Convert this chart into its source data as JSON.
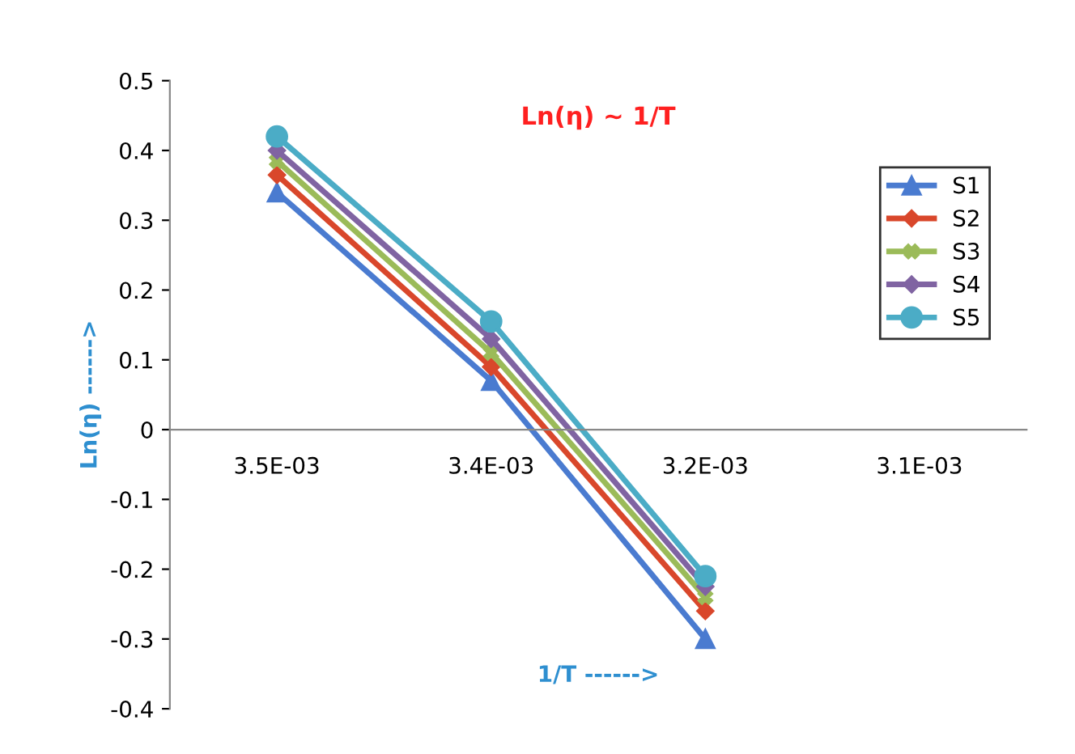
{
  "chart_data": {
    "type": "line",
    "title": "Ln(η) ~ 1/T",
    "xlabel": "1/T ------>",
    "ylabel": "Ln(η) ------>",
    "categories": [
      "3.5E-03",
      "3.4E-03",
      "3.2E-03",
      "3.1E-03"
    ],
    "series": [
      {
        "name": "S1",
        "color": "#4a7bd0",
        "marker": "triangle",
        "values": [
          0.34,
          0.07,
          -0.3,
          null
        ]
      },
      {
        "name": "S2",
        "color": "#d9472b",
        "marker": "diamond",
        "values": [
          0.365,
          0.09,
          -0.26,
          null
        ]
      },
      {
        "name": "S3",
        "color": "#9bbb59",
        "marker": "cross",
        "values": [
          0.385,
          0.11,
          -0.24,
          null
        ]
      },
      {
        "name": "S4",
        "color": "#8064a2",
        "marker": "diamond",
        "values": [
          0.4,
          0.13,
          -0.225,
          null
        ]
      },
      {
        "name": "S5",
        "color": "#4bacc6",
        "marker": "circle",
        "values": [
          0.42,
          0.155,
          -0.21,
          null
        ]
      }
    ],
    "ylim": [
      -0.4,
      0.5
    ],
    "yticks": [
      -0.4,
      -0.3,
      -0.2,
      -0.1,
      0,
      0.1,
      0.2,
      0.3,
      0.4,
      0.5
    ],
    "grid": false,
    "legend": "top right",
    "line_style": "solid"
  }
}
